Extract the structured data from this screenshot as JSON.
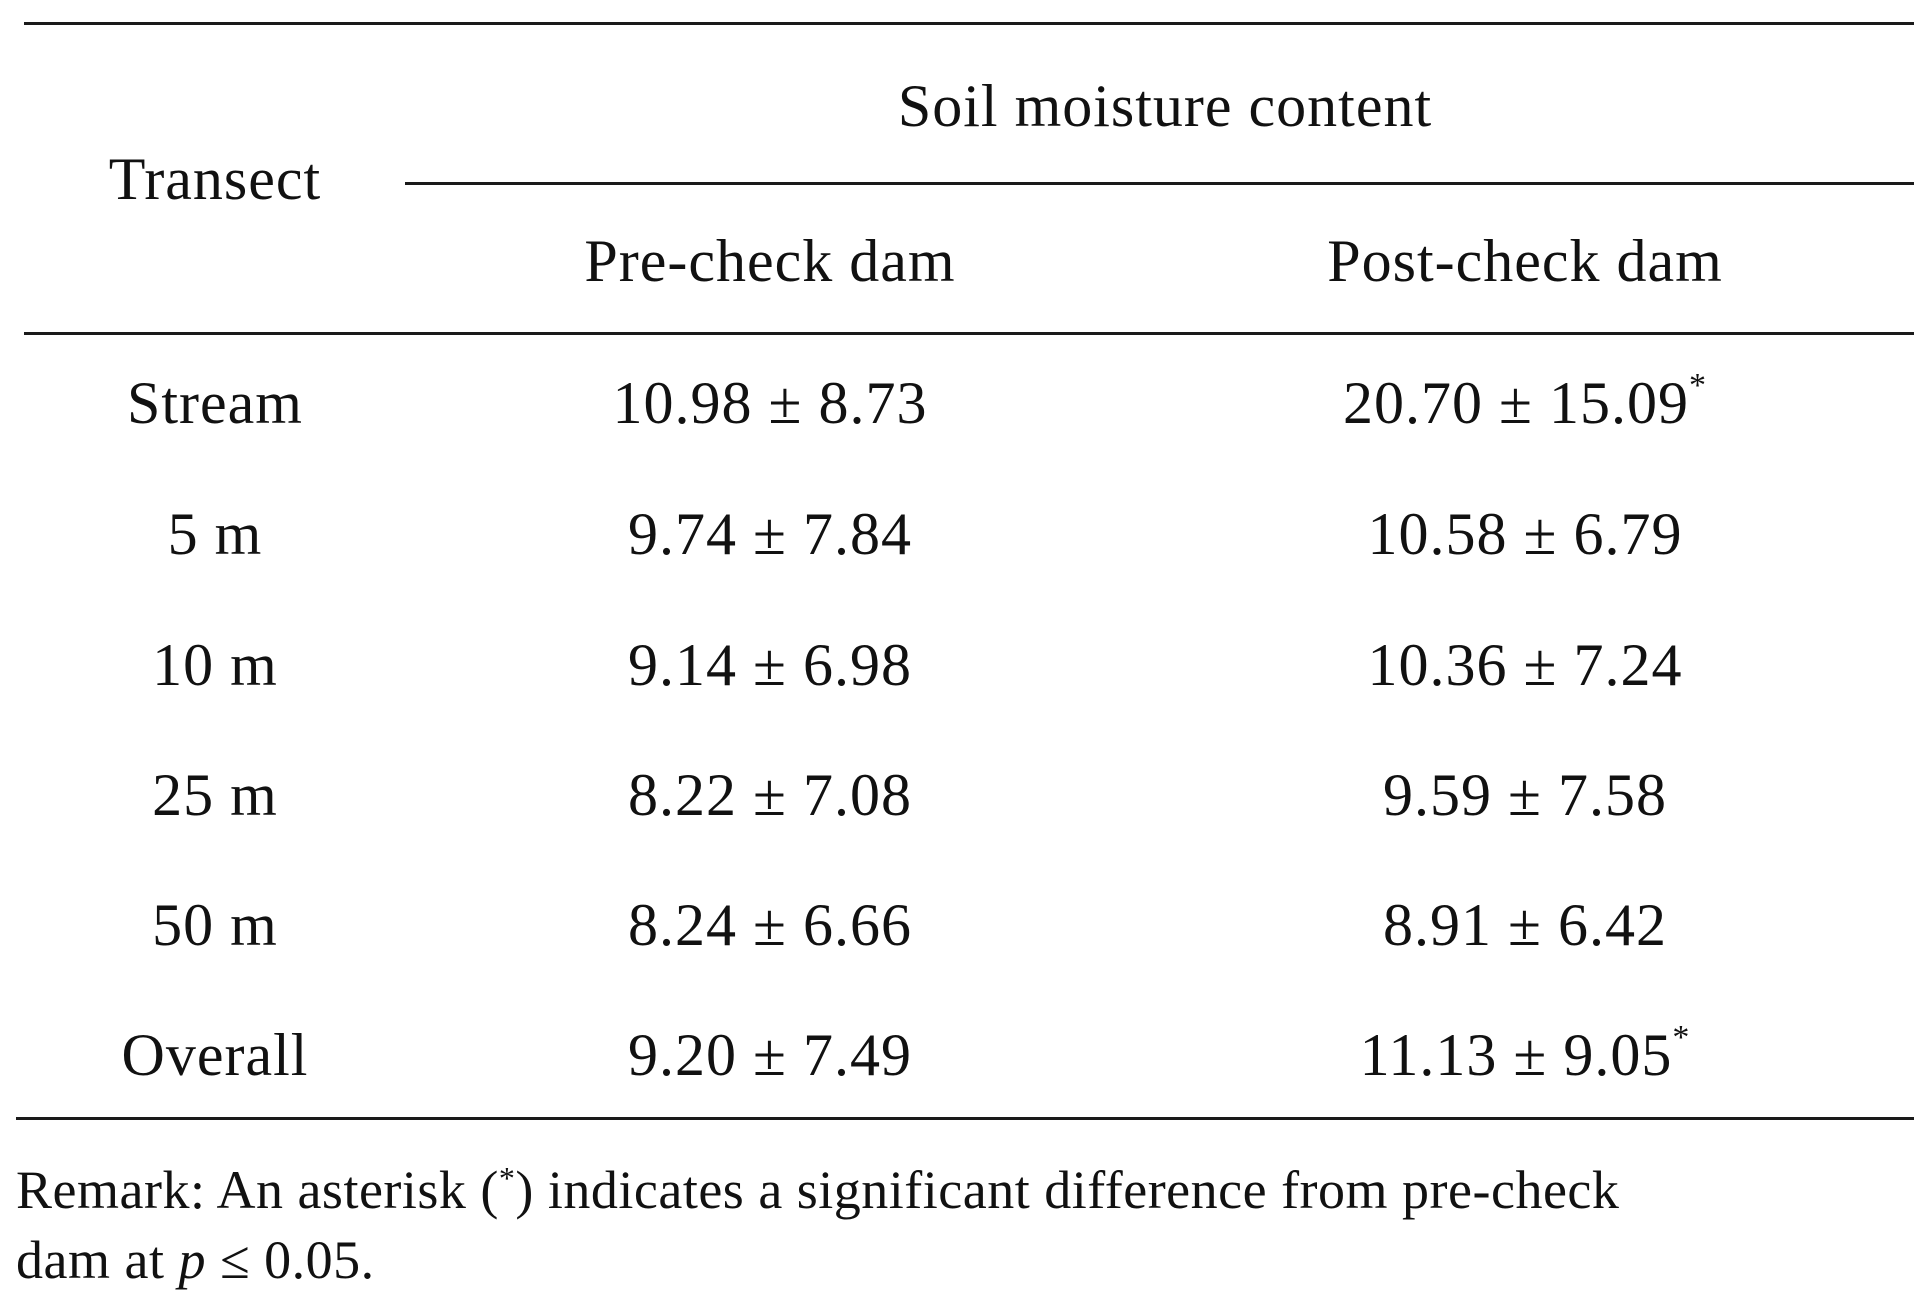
{
  "table": {
    "header": {
      "transect": "Transect",
      "group": "Soil moisture content",
      "pre": "Pre-check dam",
      "post": "Post-check dam"
    },
    "rows": [
      {
        "transect": "Stream",
        "pre": "10.98 ± 8.73",
        "post": "20.70 ± 15.09",
        "post_mark": "*"
      },
      {
        "transect": "5 m",
        "pre": "9.74 ± 7.84",
        "post": "10.58 ± 6.79",
        "post_mark": ""
      },
      {
        "transect": "10 m",
        "pre": "9.14 ± 6.98",
        "post": "10.36 ± 7.24",
        "post_mark": ""
      },
      {
        "transect": "25 m",
        "pre": "8.22 ± 7.08",
        "post": "9.59 ± 7.58",
        "post_mark": ""
      },
      {
        "transect": "50 m",
        "pre": "8.24 ± 6.66",
        "post": "8.91 ± 6.42",
        "post_mark": ""
      },
      {
        "transect": "Overall",
        "pre": "9.20 ± 7.49",
        "post": "11.13 ± 9.05",
        "post_mark": "*"
      }
    ]
  },
  "remark": {
    "part1": "Remark: An asterisk (",
    "mark": "*",
    "part2": ") indicates a significant difference from pre-check",
    "part3": "dam at ",
    "p": "p",
    "part4": " ≤ 0.05."
  }
}
